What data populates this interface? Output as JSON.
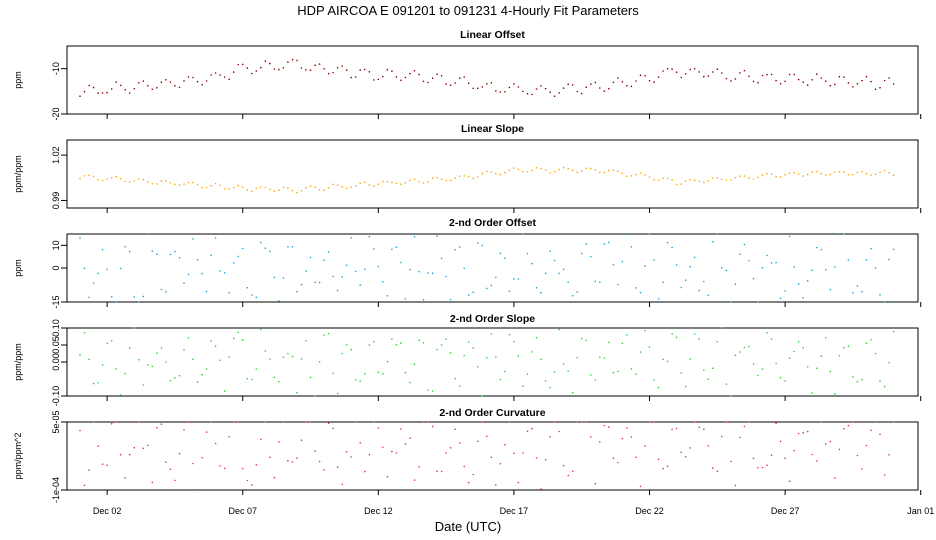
{
  "figure": {
    "title": "HDP   AIRCOA E   091201 to 091231   4-Hourly Fit Parameters",
    "xlabel": "Date (UTC)"
  },
  "chart_data": [
    {
      "type": "scatter",
      "title": "Linear Offset",
      "ylabel": "ppm",
      "color": "#8b0000",
      "ylim": [
        -20,
        -5
      ],
      "yticks": [
        -20,
        -10
      ],
      "ytick_labels": [
        "-20",
        "-10"
      ],
      "x_range": [
        "2009-12-01",
        "2009-12-31"
      ],
      "x_ticks": [
        "2009-12-02",
        "2009-12-07",
        "2009-12-12",
        "2009-12-17",
        "2009-12-22",
        "2009-12-27",
        "2010-01-01"
      ],
      "x_tick_labels": [
        "Dec 02",
        "Dec 07",
        "Dec 12",
        "Dec 17",
        "Dec 22",
        "Dec 27",
        "Jan 01"
      ],
      "profile": {
        "dates": [
          "2009-12-01",
          "2009-12-04",
          "2009-12-06",
          "2009-12-07",
          "2009-12-09",
          "2009-12-11",
          "2009-12-14",
          "2009-12-16",
          "2009-12-18",
          "2009-12-20",
          "2009-12-22",
          "2009-12-23",
          "2009-12-26",
          "2009-12-28",
          "2009-12-31"
        ],
        "values": [
          -15,
          -13.5,
          -12,
          -10,
          -9,
          -11,
          -12,
          -14,
          -15,
          -14,
          -12.5,
          -10.5,
          -12,
          -12.5,
          -13.5
        ]
      },
      "noise_amplitude": 1.1,
      "noise_kind": "oscillating"
    },
    {
      "type": "scatter",
      "title": "Linear Slope",
      "ylabel": "ppm/ppm",
      "color": "#ffa500",
      "ylim": [
        0.985,
        1.03
      ],
      "yticks": [
        0.99,
        1.02
      ],
      "ytick_labels": [
        "0.99",
        "1.02"
      ],
      "profile": {
        "dates": [
          "2009-12-01",
          "2009-12-03",
          "2009-12-05",
          "2009-12-07",
          "2009-12-09",
          "2009-12-11",
          "2009-12-13",
          "2009-12-15",
          "2009-12-17",
          "2009-12-20",
          "2009-12-22",
          "2009-12-23",
          "2009-12-26",
          "2009-12-28",
          "2009-12-31"
        ],
        "values": [
          1.006,
          1.003,
          1.001,
          0.998,
          0.997,
          1.0,
          1.002,
          1.005,
          1.01,
          1.01,
          1.006,
          1.002,
          1.006,
          1.008,
          1.008
        ]
      },
      "noise_amplitude": 0.0015,
      "noise_kind": "oscillating"
    },
    {
      "type": "scatter",
      "title": "2-nd Order Offset",
      "ylabel": "ppm",
      "color": "#1e9fd8",
      "ylim": [
        -15,
        15
      ],
      "yticks": [
        -15,
        0,
        10
      ],
      "ytick_labels": [
        "-15",
        "0",
        "10"
      ],
      "noise_amplitude": 14,
      "noise_kind": "clipped"
    },
    {
      "type": "scatter",
      "title": "2-nd Order Slope",
      "ylabel": "ppm/ppm",
      "color": "#32cd32",
      "ylim": [
        -0.1,
        0.1
      ],
      "yticks": [
        -0.1,
        0.0,
        0.05,
        0.1
      ],
      "ytick_labels": [
        "-0.10",
        "0.00",
        "0.05",
        "0.10"
      ],
      "noise_amplitude": 0.09,
      "noise_kind": "clipped"
    },
    {
      "type": "scatter",
      "title": "2-nd Order Curvature",
      "ylabel": "ppm/ppm^2",
      "color": "#d6336c",
      "ylim": [
        -0.0001,
        5e-05
      ],
      "yticks": [
        -0.0001,
        5e-05
      ],
      "ytick_labels": [
        "-1e-04",
        "5e-05"
      ],
      "noise_amplitude": 8e-05,
      "noise_kind": "clipped"
    }
  ]
}
